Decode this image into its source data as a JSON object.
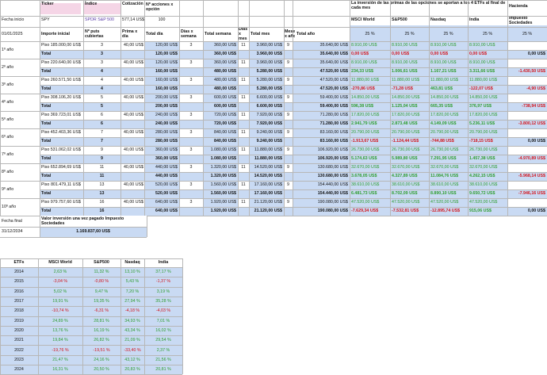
{
  "header": {
    "ticker": "Ticker",
    "indice": "Índice",
    "cotizacion": "Cotización",
    "acciones": "Nº acciones x opción",
    "fecha_inicio": "Fecha inicio",
    "ticker_value": "SPY",
    "indice_value": "SPDR S&P 500",
    "cotizacion_value": "577,14 US$",
    "acciones_value": "100",
    "start_date": "01/01/2025",
    "importe": "Importe inicial",
    "puts": "Nº puts cubiertas",
    "prima": "Prima x día",
    "total_dia": "Total día",
    "dias_semana": "Días x semana",
    "total_semana": "Total semana",
    "dias_mes": "Días x mes",
    "total_mes": "Total mes",
    "meses_ano": "Meses x año",
    "total_ano": "Total año",
    "invest_title": "La inversión de las primas de las opciones se aportan a los 4 ETFs al final de cada mes",
    "etf1": "MSCI World",
    "etf2": "S&P500",
    "etf3": "Nasdaq",
    "etf4": "India",
    "pct": "25 %",
    "hacienda": "Hacienda",
    "impuesto": "Impuesto Sociedades"
  },
  "years": [
    {
      "label": "1º año",
      "piso": {
        "importe": "185.000,00 US$",
        "puts": "3",
        "prima": "40,00 US$",
        "dia": "120,00 US$",
        "ds": "3",
        "sem": "360,00 US$",
        "dm": "11",
        "mes": "3.960,00 US$",
        "ma": "9",
        "ano": "35.640,00 US$",
        "e1": "8.910,00 US$",
        "e2": "8.910,00 US$",
        "e3": "8.910,00 US$",
        "e4": "8.910,00 US$",
        "h": ""
      },
      "total": {
        "puts": "3",
        "dia": "120,00 US$",
        "sem": "360,00 US$",
        "mes": "3.960,00 US$",
        "ano": "35.640,00 US$",
        "e1": "0,00 US$",
        "e2": "0,00 US$",
        "e3": "0,00 US$",
        "e4": "0,00 US$",
        "h": "0,00 US$"
      }
    },
    {
      "label": "2º año",
      "piso": {
        "importe": "220.640,00 US$",
        "puts": "3",
        "prima": "40,00 US$",
        "dia": "120,00 US$",
        "ds": "3",
        "sem": "360,00 US$",
        "dm": "11",
        "mes": "3.960,00 US$",
        "ma": "9",
        "ano": "35.640,00 US$",
        "e1": "8.910,00 US$",
        "e2": "8.910,00 US$",
        "e3": "8.910,00 US$",
        "e4": "8.910,00 US$",
        "h": ""
      },
      "total": {
        "puts": "4",
        "dia": "160,00 US$",
        "sem": "480,00 US$",
        "mes": "5.280,00 US$",
        "ano": "47.520,00 US$",
        "e1": "234,33 US$",
        "e2": "1.006,61 US$",
        "e3": "1.167,21 US$",
        "e4": "3.311,66 US$",
        "h": "-1.430,50 US$"
      }
    },
    {
      "label": "3º año",
      "piso": {
        "importe": "260.571,50 US$",
        "puts": "4",
        "prima": "40,00 US$",
        "dia": "160,00 US$",
        "ds": "3",
        "sem": "480,00 US$",
        "dm": "11",
        "mes": "5.280,00 US$",
        "ma": "9",
        "ano": "47.520,00 US$",
        "e1": "11.880,00 US$",
        "e2": "11.880,00 US$",
        "e3": "11.880,00 US$",
        "e4": "11.880,00 US$",
        "h": ""
      },
      "total": {
        "puts": "4",
        "dia": "160,00 US$",
        "sem": "480,00 US$",
        "mes": "5.280,00 US$",
        "ano": "47.520,00 US$",
        "e1": "-270,86 US$",
        "e2": "-71,28 US$",
        "e3": "463,81 US$",
        "e4": "-122,07 US$",
        "h": "-4,90 US$"
      }
    },
    {
      "label": "4º año",
      "piso": {
        "importe": "308.106,20 US$",
        "puts": "5",
        "prima": "40,00 US$",
        "dia": "200,00 US$",
        "ds": "3",
        "sem": "600,00 US$",
        "dm": "11",
        "mes": "6.600,00 US$",
        "ma": "9",
        "ano": "59.400,00 US$",
        "e1": "14.850,00 US$",
        "e2": "14.850,00 US$",
        "e3": "14.850,00 US$",
        "e4": "14.850,00 US$",
        "h": ""
      },
      "total": {
        "puts": "5",
        "dia": "200,00 US$",
        "sem": "600,00 US$",
        "mes": "6.600,00 US$",
        "ano": "59.400,00 US$",
        "e1": "596,38 US$",
        "e2": "1.125,04 US$",
        "e3": "665,35 US$",
        "e4": "376,97 US$",
        "h": "-738,94 US$"
      }
    },
    {
      "label": "5º año",
      "piso": {
        "importe": "369.723,01 US$",
        "puts": "6",
        "prima": "40,00 US$",
        "dia": "240,00 US$",
        "ds": "3",
        "sem": "720,00 US$",
        "dm": "11",
        "mes": "7.920,00 US$",
        "ma": "9",
        "ano": "71.280,00 US$",
        "e1": "17.820,00 US$",
        "e2": "17.820,00 US$",
        "e3": "17.820,00 US$",
        "e4": "17.820,00 US$",
        "h": ""
      },
      "total": {
        "puts": "6",
        "dia": "240,00 US$",
        "sem": "720,00 US$",
        "mes": "7.920,00 US$",
        "ano": "71.280,00 US$",
        "e1": "2.941,79 US$",
        "e2": "2.873,48 US$",
        "e3": "4.149,09 US$",
        "e4": "5.236,11 US$",
        "h": "-3.800,12 US$"
      }
    },
    {
      "label": "6º año",
      "piso": {
        "importe": "452.403,36 US$",
        "puts": "7",
        "prima": "40,00 US$",
        "dia": "280,00 US$",
        "ds": "3",
        "sem": "840,00 US$",
        "dm": "11",
        "mes": "9.240,00 US$",
        "ma": "9",
        "ano": "83.160,00 US$",
        "e1": "20.790,00 US$",
        "e2": "20.790,00 US$",
        "e3": "20.790,00 US$",
        "e4": "20.790,00 US$",
        "h": ""
      },
      "total": {
        "puts": "7",
        "dia": "280,00 US$",
        "sem": "840,00 US$",
        "mes": "9.240,00 US$",
        "ano": "83.160,00 US$",
        "e1": "-1.913,67 US$",
        "e2": "-1.124,44 US$",
        "e3": "-744,88 US$",
        "e4": "-718,15 US$",
        "h": "0,00 US$"
      }
    },
    {
      "label": "7º año",
      "piso": {
        "importe": "531.062,02 US$",
        "puts": "9",
        "prima": "40,00 US$",
        "dia": "360,00 US$",
        "ds": "3",
        "sem": "1.080,00 US$",
        "dm": "11",
        "mes": "11.880,00 US$",
        "ma": "9",
        "ano": "106.920,00 US$",
        "e1": "26.730,00 US$",
        "e2": "26.730,00 US$",
        "e3": "26.730,00 US$",
        "e4": "26.730,00 US$",
        "h": ""
      },
      "total": {
        "puts": "9",
        "dia": "360,00 US$",
        "sem": "1.080,00 US$",
        "mes": "11.880,00 US$",
        "ano": "106.920,00 US$",
        "e1": "5.174,63 US$",
        "e2": "5.989,80 US$",
        "e3": "7.291,95 US$",
        "e4": "1.457,38 US$",
        "h": "-4.970,89 US$"
      }
    },
    {
      "label": "8º año",
      "piso": {
        "importe": "652.894,69 US$",
        "puts": "11",
        "prima": "40,00 US$",
        "dia": "440,00 US$",
        "ds": "3",
        "sem": "1.320,00 US$",
        "dm": "11",
        "mes": "14.520,00 US$",
        "ma": "9",
        "ano": "130.680,00 US$",
        "e1": "32.670,00 US$",
        "e2": "32.670,00 US$",
        "e3": "32.670,00 US$",
        "e4": "32.670,00 US$",
        "h": ""
      },
      "total": {
        "puts": "11",
        "dia": "440,00 US$",
        "sem": "1.320,00 US$",
        "mes": "14.520,00 US$",
        "ano": "130.680,00 US$",
        "e1": "3.678,05 US$",
        "e2": "4.327,89 US$",
        "e3": "11.084,76 US$",
        "e4": "4.262,15 US$",
        "h": "-5.968,14 US$"
      }
    },
    {
      "label": "9º año",
      "piso": {
        "importe": "801.479,11 US$",
        "puts": "13",
        "prima": "40,00 US$",
        "dia": "520,00 US$",
        "ds": "3",
        "sem": "1.560,00 US$",
        "dm": "11",
        "mes": "17.160,00 US$",
        "ma": "9",
        "ano": "154.440,00 US$",
        "e1": "38.610,00 US$",
        "e2": "38.610,00 US$",
        "e3": "38.610,00 US$",
        "e4": "38.610,00 US$",
        "h": ""
      },
      "total": {
        "puts": "13",
        "dia": "520,00 US$",
        "sem": "1.560,00 US$",
        "mes": "17.160,00 US$",
        "ano": "154.440,00 US$",
        "e1": "6.481,73 US$",
        "e2": "8.702,09 US$",
        "e3": "8.890,10 US$",
        "e4": "9.650,72 US$",
        "h": "-7.946,16 US$"
      }
    },
    {
      "label": "10º año",
      "piso": {
        "importe": "979.757,60 US$",
        "puts": "16",
        "prima": "40,00 US$",
        "dia": "640,00 US$",
        "ds": "3",
        "sem": "1.920,00 US$",
        "dm": "11",
        "mes": "21.120,00 US$",
        "ma": "9",
        "ano": "190.080,00 US$",
        "e1": "47.520,00 US$",
        "e2": "47.520,00 US$",
        "e3": "47.520,00 US$",
        "e4": "47.520,00 US$",
        "h": ""
      },
      "total": {
        "puts": "16",
        "dia": "640,00 US$",
        "sem": "1.920,00 US$",
        "mes": "21.120,00 US$",
        "ano": "190.080,00 US$",
        "e1": "-7.629,34 US$",
        "e2": "-7.532,81 US$",
        "e3": "-12.895,74 US$",
        "e4": "915,06 US$",
        "h": "0,00 US$"
      }
    }
  ],
  "labels": {
    "piso": "Piso",
    "total": "Total"
  },
  "footer": {
    "fecha_final": "Fecha final",
    "valor_label": "Valor inversión una vez pagado Impuesto Sociedades",
    "end_date": "31/12/2034",
    "valor": "1.169.837,60 US$"
  },
  "etf_table": {
    "headers": [
      "ETFs",
      "MSCI World",
      "S&P500",
      "Nasdaq",
      "India"
    ],
    "rows": [
      [
        "2014",
        "2,63 %",
        "11,32 %",
        "13,10 %",
        "37,17 %"
      ],
      [
        "2015",
        "-3,04 %",
        "-0,80 %",
        "5,43 %",
        "-1,37 %"
      ],
      [
        "2016",
        "5,02 %",
        "9,47 %",
        "7,20 %",
        "3,19 %"
      ],
      [
        "2017",
        "19,91 %",
        "19,35 %",
        "27,94 %",
        "35,28 %"
      ],
      [
        "2018",
        "-10,74 %",
        "-6,31 %",
        "-4,18 %",
        "-4,03 %"
      ],
      [
        "2019",
        "24,89 %",
        "28,81 %",
        "34,93 %",
        "7,01 %"
      ],
      [
        "2020",
        "13,76 %",
        "16,19 %",
        "43,34 %",
        "16,02 %"
      ],
      [
        "2021",
        "19,84 %",
        "26,82 %",
        "21,09 %",
        "29,54 %"
      ],
      [
        "2022",
        "-19,76 %",
        "-19,51 %",
        "-33,40 %",
        "2,37 %"
      ],
      [
        "2023",
        "21,47 %",
        "24,16 %",
        "43,12 %",
        "21,56 %"
      ],
      [
        "2024",
        "16,31 %",
        "20,50 %",
        "20,83 %",
        "20,81 %"
      ]
    ]
  },
  "colors": {
    "lightblue": "#c9daf3",
    "green": "#2f9d2f",
    "red": "#d4141b",
    "pink": "#f5d5e6",
    "border": "#b7b7b7"
  }
}
